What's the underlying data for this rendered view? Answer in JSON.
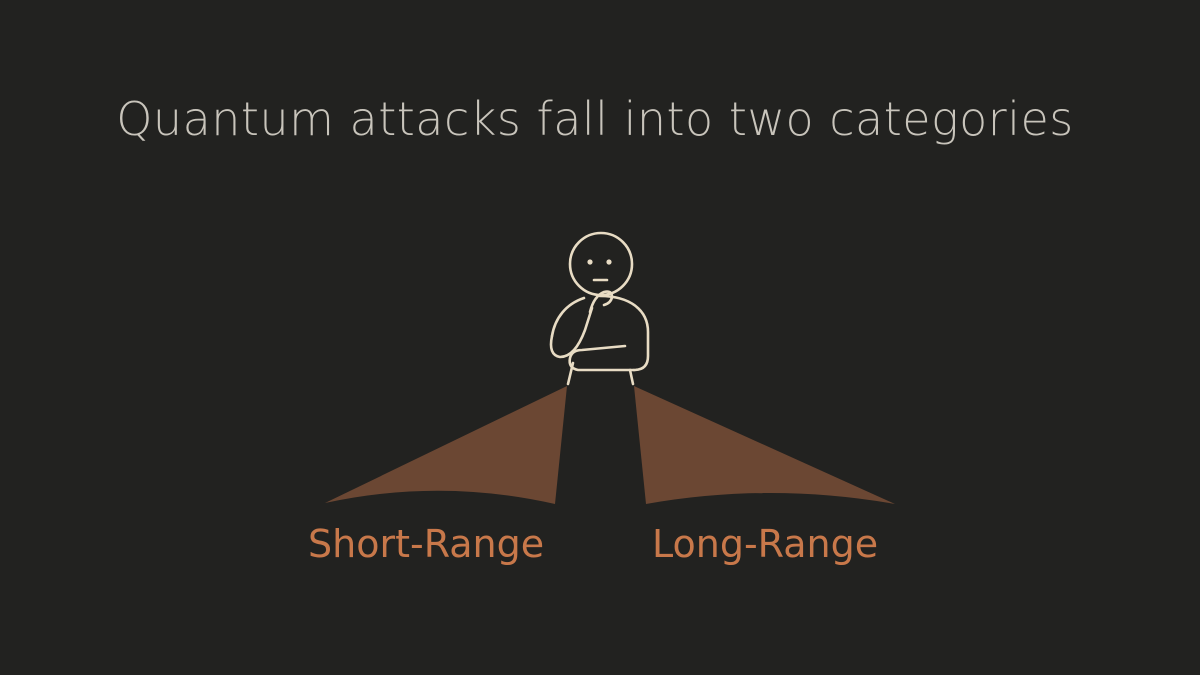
{
  "slide": {
    "title": "Quantum attacks fall into two categories",
    "branches": [
      {
        "label": "Short-Range"
      },
      {
        "label": "Long-Range"
      }
    ]
  },
  "colors": {
    "background": "#222220",
    "title": "#c8c4bb",
    "label": "#c8784a",
    "path_fill": "#6b4733",
    "figure_stroke": "#e8dcc4"
  },
  "icons": {
    "figure": "thinking-person-icon"
  }
}
